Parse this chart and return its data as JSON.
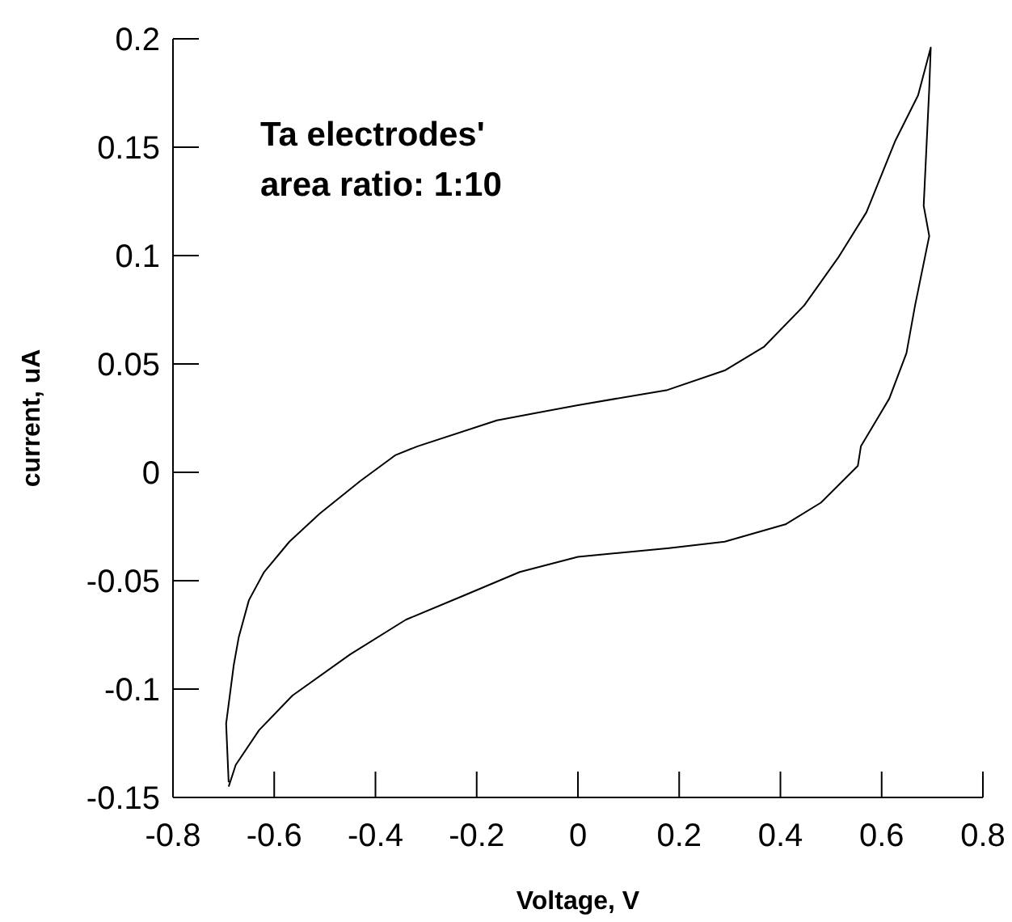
{
  "chart_data": {
    "type": "line",
    "xlabel": "Voltage, V",
    "ylabel": "current, uA",
    "annotations": [
      "Ta electrodes' area ratio: 1:10"
    ],
    "xlim": [
      -0.8,
      0.8
    ],
    "xticks": [
      -0.8,
      -0.6,
      -0.4,
      -0.2,
      0,
      0.2,
      0.4,
      0.6,
      0.8
    ],
    "ylim": [
      -0.15,
      0.2
    ],
    "yticks": [
      -0.15,
      -0.1,
      -0.05,
      0,
      0.05,
      0.1,
      0.15,
      0.2
    ],
    "grid": false,
    "legend": false,
    "marker": "none",
    "line_style": "solid",
    "series": [
      {
        "color": "#000000",
        "x": [
          -0.69,
          -0.695,
          -0.68,
          -0.67,
          -0.65,
          -0.62,
          -0.57,
          -0.51,
          -0.43,
          -0.36,
          -0.317,
          -0.16,
          0,
          0.177,
          0.29,
          0.368,
          0.447,
          0.514,
          0.57,
          0.627,
          0.672,
          0.697,
          0.694,
          0.683,
          0.694,
          0.666,
          0.649,
          0.615,
          0.559,
          0.553,
          0.48,
          0.41,
          0.29,
          0.18,
          0,
          -0.115,
          -0.227,
          -0.34,
          -0.45,
          -0.564,
          -0.63,
          -0.676,
          -0.69
        ],
        "values": [
          -0.143,
          -0.116,
          -0.089,
          -0.076,
          -0.059,
          -0.046,
          -0.032,
          -0.019,
          -0.004,
          0.008,
          0.012,
          0.024,
          0.031,
          0.038,
          0.047,
          0.058,
          0.077,
          0.099,
          0.12,
          0.153,
          0.174,
          0.196,
          0.177,
          0.123,
          0.109,
          0.077,
          0.055,
          0.034,
          0.012,
          0.003,
          -0.014,
          -0.024,
          -0.032,
          -0.035,
          -0.039,
          -0.046,
          -0.057,
          -0.068,
          -0.084,
          -0.103,
          -0.119,
          -0.135,
          -0.145
        ]
      }
    ]
  }
}
